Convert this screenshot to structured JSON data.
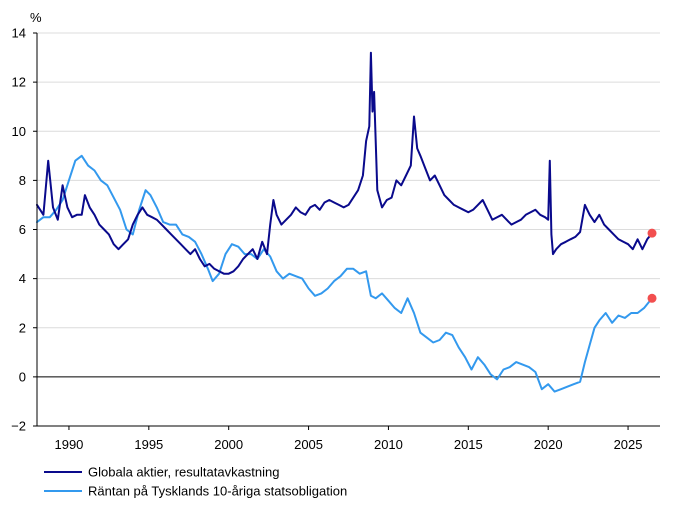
{
  "chart_data": {
    "type": "line",
    "ylabel": "%",
    "ylim": [
      -2,
      14
    ],
    "yticks": [
      -2,
      0,
      2,
      4,
      6,
      8,
      10,
      12,
      14
    ],
    "xlim": [
      1988.0,
      2027.0
    ],
    "xticks": [
      1990,
      1995,
      2000,
      2005,
      2010,
      2015,
      2020,
      2025
    ],
    "grid": true,
    "legend_position": "bottom-left",
    "series": [
      {
        "name": "Globala aktier, resultatavkastning",
        "color": "#0a0a8c",
        "x": [
          1988.0,
          1988.4,
          1988.7,
          1989.0,
          1989.3,
          1989.6,
          1989.9,
          1990.2,
          1990.5,
          1990.8,
          1991.0,
          1991.3,
          1991.6,
          1991.9,
          1992.2,
          1992.5,
          1992.8,
          1993.1,
          1993.4,
          1993.7,
          1994.0,
          1994.3,
          1994.6,
          1994.9,
          1995.2,
          1995.5,
          1995.8,
          1996.1,
          1996.4,
          1996.7,
          1997.0,
          1997.3,
          1997.6,
          1997.9,
          1998.2,
          1998.5,
          1998.8,
          1999.1,
          1999.4,
          1999.7,
          2000.0,
          2000.3,
          2000.6,
          2000.9,
          2001.2,
          2001.5,
          2001.8,
          2002.1,
          2002.4,
          2002.6,
          2002.8,
          2003.0,
          2003.3,
          2003.6,
          2003.9,
          2004.2,
          2004.5,
          2004.8,
          2005.1,
          2005.4,
          2005.7,
          2006.0,
          2006.3,
          2006.6,
          2006.9,
          2007.2,
          2007.5,
          2007.8,
          2008.1,
          2008.4,
          2008.6,
          2008.8,
          2008.9,
          2009.0,
          2009.1,
          2009.3,
          2009.6,
          2009.9,
          2010.2,
          2010.5,
          2010.8,
          2011.1,
          2011.4,
          2011.6,
          2011.8,
          2012.0,
          2012.3,
          2012.6,
          2012.9,
          2013.2,
          2013.5,
          2013.8,
          2014.1,
          2014.4,
          2014.7,
          2015.0,
          2015.3,
          2015.6,
          2015.9,
          2016.2,
          2016.5,
          2016.8,
          2017.1,
          2017.4,
          2017.7,
          2018.0,
          2018.3,
          2018.6,
          2018.9,
          2019.2,
          2019.5,
          2019.8,
          2020.0,
          2020.1,
          2020.2,
          2020.3,
          2020.5,
          2020.8,
          2021.1,
          2021.4,
          2021.7,
          2022.0,
          2022.3,
          2022.6,
          2022.9,
          2023.2,
          2023.5,
          2023.8,
          2024.1,
          2024.4,
          2024.7,
          2025.0,
          2025.3,
          2025.6,
          2025.9,
          2026.2,
          2026.5
        ],
        "y": [
          7.0,
          6.6,
          8.8,
          6.9,
          6.4,
          7.8,
          6.9,
          6.5,
          6.6,
          6.6,
          7.4,
          6.9,
          6.6,
          6.2,
          6.0,
          5.8,
          5.4,
          5.2,
          5.4,
          5.6,
          6.2,
          6.6,
          6.9,
          6.6,
          6.5,
          6.4,
          6.2,
          6.0,
          5.8,
          5.6,
          5.4,
          5.2,
          5.0,
          5.2,
          4.8,
          4.5,
          4.6,
          4.4,
          4.3,
          4.2,
          4.2,
          4.3,
          4.5,
          4.8,
          5.0,
          5.2,
          4.8,
          5.5,
          5.0,
          6.2,
          7.2,
          6.6,
          6.2,
          6.4,
          6.6,
          6.9,
          6.7,
          6.6,
          6.9,
          7.0,
          6.8,
          7.1,
          7.2,
          7.1,
          7.0,
          6.9,
          7.0,
          7.3,
          7.6,
          8.2,
          9.6,
          10.2,
          13.2,
          10.8,
          11.6,
          7.6,
          6.9,
          7.2,
          7.3,
          8.0,
          7.8,
          8.2,
          8.6,
          10.6,
          9.3,
          9.0,
          8.5,
          8.0,
          8.2,
          7.8,
          7.4,
          7.2,
          7.0,
          6.9,
          6.8,
          6.7,
          6.8,
          7.0,
          7.2,
          6.8,
          6.4,
          6.5,
          6.6,
          6.4,
          6.2,
          6.3,
          6.4,
          6.6,
          6.7,
          6.8,
          6.6,
          6.5,
          6.4,
          8.8,
          5.8,
          5.0,
          5.2,
          5.4,
          5.5,
          5.6,
          5.7,
          5.9,
          7.0,
          6.6,
          6.3,
          6.6,
          6.2,
          6.0,
          5.8,
          5.6,
          5.5,
          5.4,
          5.2,
          5.6,
          5.2,
          5.6,
          5.85
        ],
        "end_marker": true
      },
      {
        "name": "Räntan på Tysklands 10-åriga statsobligation",
        "color": "#3399ee",
        "x": [
          1988.0,
          1988.4,
          1988.8,
          1989.2,
          1989.6,
          1990.0,
          1990.4,
          1990.8,
          1991.2,
          1991.6,
          1992.0,
          1992.4,
          1992.8,
          1993.2,
          1993.6,
          1994.0,
          1994.4,
          1994.8,
          1995.1,
          1995.5,
          1995.9,
          1996.3,
          1996.7,
          1997.1,
          1997.5,
          1997.9,
          1998.3,
          1998.7,
          1999.0,
          1999.4,
          1999.8,
          2000.2,
          2000.6,
          2001.0,
          2001.4,
          2001.8,
          2002.2,
          2002.6,
          2003.0,
          2003.4,
          2003.8,
          2004.2,
          2004.6,
          2005.0,
          2005.4,
          2005.8,
          2006.2,
          2006.6,
          2007.0,
          2007.4,
          2007.8,
          2008.2,
          2008.6,
          2008.9,
          2009.2,
          2009.6,
          2010.0,
          2010.4,
          2010.8,
          2011.2,
          2011.6,
          2012.0,
          2012.4,
          2012.8,
          2013.2,
          2013.6,
          2014.0,
          2014.4,
          2014.8,
          2015.2,
          2015.6,
          2016.0,
          2016.4,
          2016.8,
          2017.2,
          2017.6,
          2018.0,
          2018.4,
          2018.8,
          2019.2,
          2019.6,
          2020.0,
          2020.4,
          2020.8,
          2021.2,
          2021.6,
          2022.0,
          2022.3,
          2022.6,
          2022.9,
          2023.2,
          2023.6,
          2024.0,
          2024.4,
          2024.8,
          2025.2,
          2025.6,
          2026.0,
          2026.5
        ],
        "y": [
          6.3,
          6.5,
          6.5,
          6.8,
          7.2,
          8.0,
          8.8,
          9.0,
          8.6,
          8.4,
          8.0,
          7.8,
          7.3,
          6.8,
          6.0,
          5.8,
          6.8,
          7.6,
          7.4,
          6.9,
          6.3,
          6.2,
          6.2,
          5.8,
          5.7,
          5.5,
          5.0,
          4.4,
          3.9,
          4.2,
          5.0,
          5.4,
          5.3,
          5.0,
          5.0,
          4.8,
          5.2,
          4.9,
          4.3,
          4.0,
          4.2,
          4.1,
          4.0,
          3.6,
          3.3,
          3.4,
          3.6,
          3.9,
          4.1,
          4.4,
          4.4,
          4.2,
          4.3,
          3.3,
          3.2,
          3.4,
          3.1,
          2.8,
          2.6,
          3.2,
          2.6,
          1.8,
          1.6,
          1.4,
          1.5,
          1.8,
          1.7,
          1.2,
          0.8,
          0.3,
          0.8,
          0.5,
          0.1,
          -0.1,
          0.3,
          0.4,
          0.6,
          0.5,
          0.4,
          0.2,
          -0.5,
          -0.3,
          -0.6,
          -0.5,
          -0.4,
          -0.3,
          -0.2,
          0.6,
          1.3,
          2.0,
          2.3,
          2.6,
          2.2,
          2.5,
          2.4,
          2.6,
          2.6,
          2.8,
          3.2
        ],
        "end_marker": true
      }
    ],
    "end_marker_color": "#f24f4f"
  }
}
